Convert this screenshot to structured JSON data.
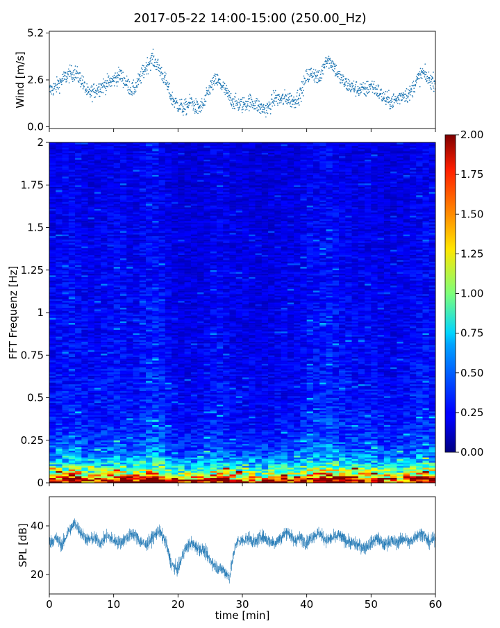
{
  "title": "2017-05-22 14:00-15:00 (250.00_Hz)",
  "chart_data": [
    {
      "type": "scatter",
      "panel": "wind",
      "ylabel": "Wind [m/s]",
      "xlim": [
        0,
        60
      ],
      "ylim": [
        -0.1,
        5.3
      ],
      "yticks": [
        0.0,
        2.6,
        5.2
      ],
      "ytick_labels": [
        "0.0",
        "2.6",
        "5.2"
      ],
      "color": "#1f77b4",
      "x": [
        0,
        1,
        2,
        3,
        4,
        5,
        6,
        7,
        8,
        9,
        10,
        11,
        12,
        13,
        14,
        15,
        16,
        17,
        18,
        19,
        20,
        21,
        22,
        23,
        24,
        25,
        26,
        27,
        28,
        29,
        30,
        31,
        32,
        33,
        34,
        35,
        36,
        37,
        38,
        39,
        40,
        41,
        42,
        43,
        44,
        45,
        46,
        47,
        48,
        49,
        50,
        51,
        52,
        53,
        54,
        55,
        56,
        57,
        58,
        59,
        60
      ],
      "y": [
        2.0,
        2.2,
        2.6,
        2.9,
        3.0,
        2.6,
        1.8,
        2.0,
        2.2,
        2.4,
        2.6,
        2.9,
        2.4,
        2.0,
        2.6,
        3.3,
        3.8,
        3.3,
        2.6,
        1.6,
        1.2,
        1.0,
        1.4,
        1.0,
        1.2,
        2.2,
        2.6,
        2.2,
        1.6,
        1.3,
        1.2,
        1.4,
        1.3,
        1.0,
        1.0,
        1.6,
        1.5,
        1.6,
        1.4,
        1.8,
        2.8,
        3.0,
        2.6,
        3.8,
        3.5,
        2.8,
        2.4,
        2.2,
        2.1,
        2.0,
        2.3,
        2.0,
        1.6,
        1.4,
        1.5,
        1.8,
        1.8,
        2.5,
        3.0,
        2.6,
        2.5
      ]
    },
    {
      "type": "heatmap",
      "panel": "spectrogram",
      "ylabel": "FFT Frequenz [Hz]",
      "xlim": [
        0,
        60
      ],
      "ylim": [
        0,
        2
      ],
      "yticks": [
        0,
        0.25,
        0.5,
        0.75,
        1,
        1.25,
        1.5,
        1.75,
        2
      ],
      "ytick_labels": [
        "0",
        "0.25",
        "0.5",
        "0.75",
        "1",
        "1.25",
        "1.5",
        "1.75",
        "2"
      ],
      "colormap": "jet",
      "clim": [
        0.0,
        2.0
      ],
      "colorbar_ticks": [
        0.0,
        0.25,
        0.5,
        0.75,
        1.0,
        1.25,
        1.5,
        1.75,
        2.0
      ],
      "colorbar_labels": [
        "0.00",
        "0.25",
        "0.50",
        "0.75",
        "1.00",
        "1.25",
        "1.50",
        "1.75",
        "2.00"
      ],
      "freq_profile": {
        "freq": [
          0.0,
          0.02,
          0.05,
          0.1,
          0.15,
          0.2,
          0.25,
          0.3,
          0.4,
          0.5,
          0.75,
          1.0,
          1.25,
          1.5,
          1.75,
          2.0
        ],
        "level": [
          2.0,
          1.7,
          1.15,
          0.72,
          0.5,
          0.4,
          0.34,
          0.3,
          0.27,
          0.25,
          0.23,
          0.22,
          0.21,
          0.2,
          0.19,
          0.19
        ]
      }
    },
    {
      "type": "line",
      "panel": "spl",
      "ylabel": "SPL [dB]",
      "xlabel": "time [min]",
      "xlim": [
        0,
        60
      ],
      "ylim": [
        12,
        52
      ],
      "xticks": [
        0,
        10,
        20,
        30,
        40,
        50,
        60
      ],
      "xtick_labels": [
        "0",
        "10",
        "20",
        "30",
        "40",
        "50",
        "60"
      ],
      "yticks": [
        20,
        40
      ],
      "ytick_labels": [
        "20",
        "40"
      ],
      "color": "#1f77b4",
      "x": [
        0,
        1,
        2,
        3,
        4,
        5,
        6,
        7,
        8,
        9,
        10,
        11,
        12,
        13,
        14,
        15,
        16,
        17,
        18,
        19,
        20,
        21,
        22,
        23,
        24,
        25,
        26,
        27,
        28,
        29,
        30,
        31,
        32,
        33,
        34,
        35,
        36,
        37,
        38,
        39,
        40,
        41,
        42,
        43,
        44,
        45,
        46,
        47,
        48,
        49,
        50,
        51,
        52,
        53,
        54,
        55,
        56,
        57,
        58,
        59,
        60
      ],
      "y": [
        33,
        35,
        32,
        38,
        41,
        37,
        34,
        35,
        33,
        36,
        34,
        33,
        35,
        37,
        34,
        32,
        35,
        38,
        34,
        24,
        22,
        30,
        33,
        31,
        30,
        26,
        23,
        22,
        19,
        33,
        34,
        35,
        33,
        36,
        34,
        33,
        35,
        38,
        34,
        35,
        33,
        36,
        37,
        34,
        35,
        36,
        34,
        33,
        32,
        31,
        33,
        35,
        32,
        34,
        33,
        35,
        33,
        36,
        37,
        33,
        35
      ]
    }
  ]
}
